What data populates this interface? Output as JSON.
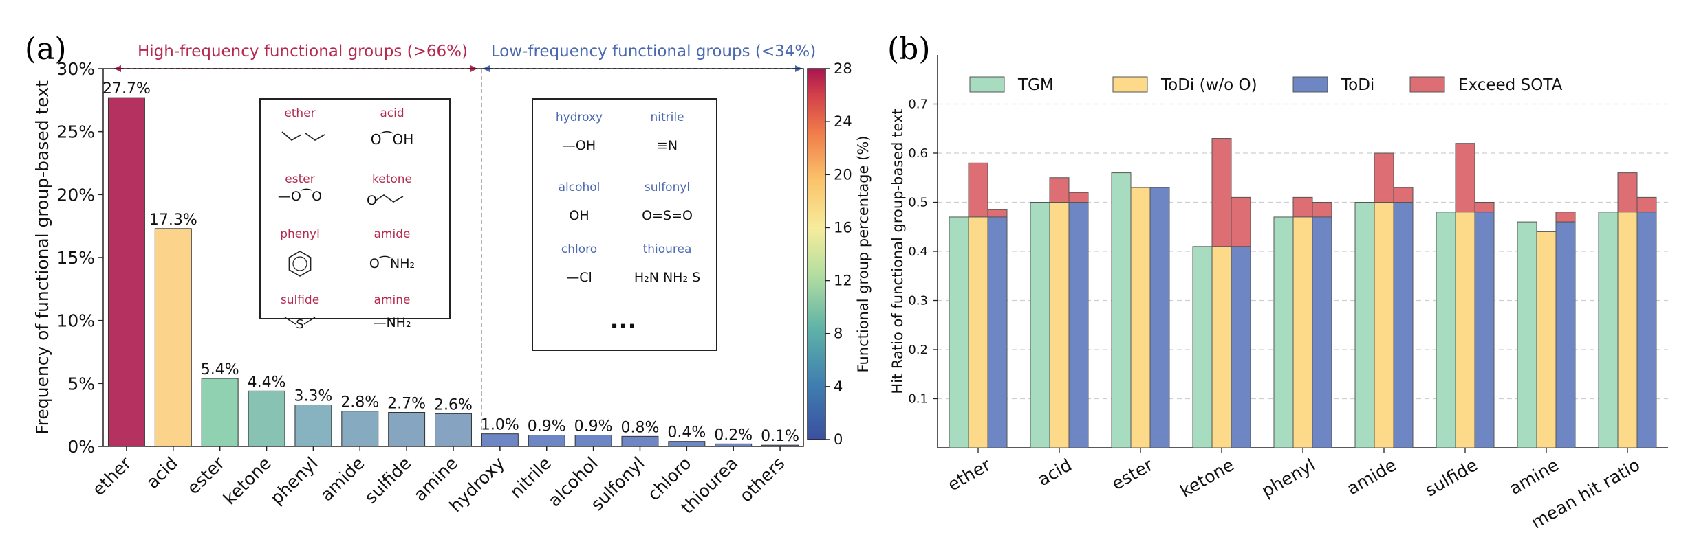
{
  "panel_a": {
    "label": "(a)",
    "high_freq_label": "High-frequency functional groups (>66%)",
    "low_freq_label": "Low-frequency functional groups (<34%)",
    "colorbar_label": "Functional group percentage (%)",
    "colorbar_ticks": [
      0,
      4,
      8,
      12,
      16,
      20,
      24,
      28
    ],
    "high_box": [
      {
        "name": "ether",
        "formula": ""
      },
      {
        "name": "acid",
        "formula": "O⁀OH"
      },
      {
        "name": "ester",
        "formula": "—O⁀O"
      },
      {
        "name": "ketone",
        "formula": "O⁀"
      },
      {
        "name": "phenyl",
        "formula": ""
      },
      {
        "name": "amide",
        "formula": "O⁀NH₂"
      },
      {
        "name": "sulfide",
        "formula": "S"
      },
      {
        "name": "amine",
        "formula": "—NH₂"
      }
    ],
    "low_box": [
      {
        "name": "hydroxy",
        "formula": "—OH"
      },
      {
        "name": "nitrile",
        "formula": "≡N"
      },
      {
        "name": "alcohol",
        "formula": "OH"
      },
      {
        "name": "sulfonyl",
        "formula": "O=S=O"
      },
      {
        "name": "chloro",
        "formula": "—Cl"
      },
      {
        "name": "thiourea",
        "formula": "H₂N NH₂ S"
      }
    ],
    "ellipsis": "..."
  },
  "panel_b": {
    "label": "(b)"
  },
  "colors": {
    "TGM": "#a8dcc0",
    "ToDi_woO": "#fdd98a",
    "ToDi": "#6f86c4",
    "Exceed": "#dc6e74",
    "high_text": "#b5294f",
    "low_text": "#4a69b0"
  },
  "chart_data": [
    {
      "type": "bar",
      "title": "",
      "xlabel": "",
      "ylabel": "Frequency of functional group-based text",
      "ylim": [
        0,
        30
      ],
      "yticks": [
        "0%",
        "5%",
        "10%",
        "15%",
        "20%",
        "25%",
        "30%"
      ],
      "categories": [
        "ether",
        "acid",
        "ester",
        "ketone",
        "phenyl",
        "amide",
        "sulfide",
        "amine",
        "hydroxy",
        "nitrile",
        "alcohol",
        "sulfonyl",
        "chloro",
        "thiourea",
        "others"
      ],
      "values": [
        27.7,
        17.3,
        5.4,
        4.4,
        3.3,
        2.8,
        2.7,
        2.6,
        1.0,
        0.9,
        0.9,
        0.8,
        0.4,
        0.2,
        0.1
      ],
      "value_labels": [
        "27.7%",
        "17.3%",
        "5.4%",
        "4.4%",
        "3.3%",
        "2.8%",
        "2.7%",
        "2.6%",
        "1.0%",
        "0.9%",
        "0.9%",
        "0.8%",
        "0.4%",
        "0.2%",
        "0.1%"
      ],
      "bar_colors": [
        "#b5315f",
        "#fbd38a",
        "#8fd1b0",
        "#88c2b2",
        "#86b3bf",
        "#86aac0",
        "#86a5c1",
        "#86a3c1",
        "#6f86c4",
        "#6f86c4",
        "#6f86c4",
        "#6f86c4",
        "#6f86c4",
        "#6f86c4",
        "#6f86c4"
      ]
    },
    {
      "type": "bar",
      "title": "",
      "xlabel": "",
      "ylabel": "Hit Ratio of functional group-based text",
      "ylim": [
        0,
        0.8
      ],
      "yticks": [
        "0.1",
        "0.2",
        "0.3",
        "0.4",
        "0.5",
        "0.6",
        "0.7"
      ],
      "grid": true,
      "legend_position": "top",
      "categories": [
        "ether",
        "acid",
        "ester",
        "ketone",
        "phenyl",
        "amide",
        "sulfide",
        "amine",
        "mean hit ratio"
      ],
      "series": [
        {
          "name": "TGM",
          "values": [
            0.47,
            0.5,
            0.56,
            0.41,
            0.47,
            0.5,
            0.48,
            0.46,
            0.48
          ]
        },
        {
          "name": "ToDi (w/o O)",
          "values": [
            0.47,
            0.5,
            0.53,
            0.41,
            0.47,
            0.5,
            0.48,
            0.44,
            0.48
          ],
          "exceed_sota": [
            0.58,
            0.55,
            null,
            0.63,
            0.51,
            0.6,
            0.62,
            null,
            0.56
          ]
        },
        {
          "name": "ToDi",
          "values": [
            0.47,
            0.5,
            0.53,
            0.41,
            0.47,
            0.5,
            0.48,
            0.46,
            0.48
          ],
          "exceed_sota": [
            0.485,
            0.52,
            null,
            0.51,
            0.5,
            0.53,
            0.5,
            0.48,
            0.51
          ]
        },
        {
          "name": "Exceed SOTA"
        }
      ]
    }
  ]
}
